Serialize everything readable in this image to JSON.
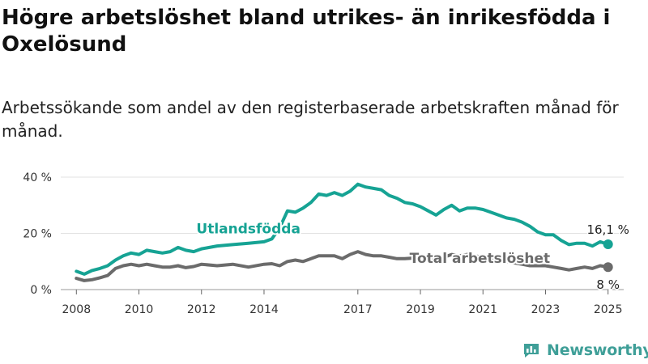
{
  "title": "Högre arbetslöshet bland utrikes- än inrikesfödda i Oxelösund",
  "subtitle": "Arbetssökande som andel av den registerbaserade arbetskraften månad för månad.",
  "brand": {
    "name": "Newsworthy",
    "icon": "newsworthy-logo-icon",
    "color": "#3f9f98"
  },
  "chart_data": {
    "type": "line",
    "ylim": [
      0,
      40
    ],
    "xlim": [
      2007.5,
      2025.5
    ],
    "y_ticks": [
      {
        "value": 0,
        "label": "0 %"
      },
      {
        "value": 20,
        "label": "20 %"
      },
      {
        "value": 40,
        "label": "40 %"
      }
    ],
    "x_ticks": [
      {
        "value": 2008,
        "label": "2008"
      },
      {
        "value": 2010,
        "label": "2010"
      },
      {
        "value": 2012,
        "label": "2012"
      },
      {
        "value": 2014,
        "label": "2014"
      },
      {
        "value": 2017,
        "label": "2017"
      },
      {
        "value": 2019,
        "label": "2019"
      },
      {
        "value": 2021,
        "label": "2021"
      },
      {
        "value": 2023,
        "label": "2023"
      },
      {
        "value": 2025,
        "label": "2025"
      }
    ],
    "grid": "horizontal",
    "series": [
      {
        "name": "Utlandsfödda",
        "color": "#16a394",
        "end_label": "16,1 %",
        "points": [
          [
            2008.0,
            6.5
          ],
          [
            2008.25,
            5.5
          ],
          [
            2008.5,
            6.8
          ],
          [
            2008.75,
            7.5
          ],
          [
            2009.0,
            8.5
          ],
          [
            2009.25,
            10.5
          ],
          [
            2009.5,
            12.0
          ],
          [
            2009.75,
            13.0
          ],
          [
            2010.0,
            12.5
          ],
          [
            2010.25,
            14.0
          ],
          [
            2010.5,
            13.5
          ],
          [
            2010.75,
            13.0
          ],
          [
            2011.0,
            13.5
          ],
          [
            2011.25,
            15.0
          ],
          [
            2011.5,
            14.0
          ],
          [
            2011.75,
            13.5
          ],
          [
            2012.0,
            14.5
          ],
          [
            2012.5,
            15.5
          ],
          [
            2013.0,
            16.0
          ],
          [
            2013.5,
            16.5
          ],
          [
            2014.0,
            17.0
          ],
          [
            2014.25,
            18.0
          ],
          [
            2014.5,
            22.0
          ],
          [
            2014.75,
            28.0
          ],
          [
            2015.0,
            27.5
          ],
          [
            2015.25,
            29.0
          ],
          [
            2015.5,
            31.0
          ],
          [
            2015.75,
            34.0
          ],
          [
            2016.0,
            33.5
          ],
          [
            2016.25,
            34.5
          ],
          [
            2016.5,
            33.5
          ],
          [
            2016.75,
            35.0
          ],
          [
            2017.0,
            37.5
          ],
          [
            2017.25,
            36.5
          ],
          [
            2017.5,
            36.0
          ],
          [
            2017.75,
            35.5
          ],
          [
            2018.0,
            33.5
          ],
          [
            2018.25,
            32.5
          ],
          [
            2018.5,
            31.0
          ],
          [
            2018.75,
            30.5
          ],
          [
            2019.0,
            29.5
          ],
          [
            2019.25,
            28.0
          ],
          [
            2019.5,
            26.5
          ],
          [
            2019.75,
            28.5
          ],
          [
            2020.0,
            30.0
          ],
          [
            2020.25,
            28.0
          ],
          [
            2020.5,
            29.0
          ],
          [
            2020.75,
            29.0
          ],
          [
            2021.0,
            28.5
          ],
          [
            2021.25,
            27.5
          ],
          [
            2021.5,
            26.5
          ],
          [
            2021.75,
            25.5
          ],
          [
            2022.0,
            25.0
          ],
          [
            2022.25,
            24.0
          ],
          [
            2022.5,
            22.5
          ],
          [
            2022.75,
            20.5
          ],
          [
            2023.0,
            19.5
          ],
          [
            2023.25,
            19.5
          ],
          [
            2023.5,
            17.5
          ],
          [
            2023.75,
            16.0
          ],
          [
            2024.0,
            16.5
          ],
          [
            2024.25,
            16.5
          ],
          [
            2024.5,
            15.5
          ],
          [
            2024.75,
            17.0
          ],
          [
            2025.0,
            16.1
          ]
        ]
      },
      {
        "name": "Total arbetslöshet",
        "color": "#6b6b6b",
        "end_label": "8 %",
        "points": [
          [
            2008.0,
            4.0
          ],
          [
            2008.25,
            3.2
          ],
          [
            2008.5,
            3.5
          ],
          [
            2008.75,
            4.2
          ],
          [
            2009.0,
            5.0
          ],
          [
            2009.25,
            7.5
          ],
          [
            2009.5,
            8.5
          ],
          [
            2009.75,
            9.0
          ],
          [
            2010.0,
            8.5
          ],
          [
            2010.25,
            9.0
          ],
          [
            2010.5,
            8.5
          ],
          [
            2010.75,
            8.0
          ],
          [
            2011.0,
            8.0
          ],
          [
            2011.25,
            8.5
          ],
          [
            2011.5,
            7.8
          ],
          [
            2011.75,
            8.2
          ],
          [
            2012.0,
            9.0
          ],
          [
            2012.5,
            8.5
          ],
          [
            2013.0,
            9.0
          ],
          [
            2013.5,
            8.0
          ],
          [
            2014.0,
            9.0
          ],
          [
            2014.25,
            9.2
          ],
          [
            2014.5,
            8.5
          ],
          [
            2014.75,
            10.0
          ],
          [
            2015.0,
            10.5
          ],
          [
            2015.25,
            10.0
          ],
          [
            2015.5,
            11.0
          ],
          [
            2015.75,
            12.0
          ],
          [
            2016.0,
            12.0
          ],
          [
            2016.25,
            12.0
          ],
          [
            2016.5,
            11.0
          ],
          [
            2016.75,
            12.5
          ],
          [
            2017.0,
            13.5
          ],
          [
            2017.25,
            12.5
          ],
          [
            2017.5,
            12.0
          ],
          [
            2017.75,
            12.0
          ],
          [
            2018.0,
            11.5
          ],
          [
            2018.25,
            11.0
          ],
          [
            2018.5,
            11.0
          ],
          [
            2018.75,
            11.2
          ],
          [
            2019.0,
            11.0
          ],
          [
            2019.25,
            10.5
          ],
          [
            2019.5,
            10.5
          ],
          [
            2019.75,
            11.5
          ],
          [
            2020.0,
            12.5
          ],
          [
            2020.25,
            12.0
          ],
          [
            2020.5,
            12.5
          ],
          [
            2020.75,
            12.0
          ],
          [
            2021.0,
            11.5
          ],
          [
            2021.25,
            11.0
          ],
          [
            2021.5,
            10.5
          ],
          [
            2021.75,
            10.0
          ],
          [
            2022.0,
            9.5
          ],
          [
            2022.25,
            9.0
          ],
          [
            2022.5,
            8.5
          ],
          [
            2022.75,
            8.5
          ],
          [
            2023.0,
            8.5
          ],
          [
            2023.25,
            8.0
          ],
          [
            2023.5,
            7.5
          ],
          [
            2023.75,
            7.0
          ],
          [
            2024.0,
            7.5
          ],
          [
            2024.25,
            8.0
          ],
          [
            2024.5,
            7.5
          ],
          [
            2024.75,
            8.5
          ],
          [
            2025.0,
            8.0
          ]
        ]
      }
    ],
    "inline_labels": [
      {
        "series": 0,
        "text": "Utlandsfödda",
        "at": [
          2013.5,
          20
        ]
      },
      {
        "series": 1,
        "text": "Total arbetslöshet",
        "at": [
          2020.9,
          9.5
        ]
      }
    ]
  }
}
